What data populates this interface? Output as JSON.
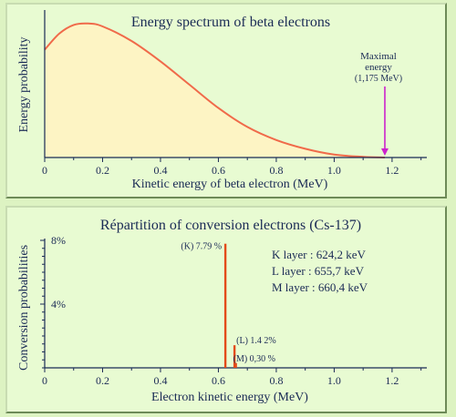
{
  "chart_data": [
    {
      "type": "area",
      "title": "Energy spectrum of beta electrons",
      "xlabel": "Kinetic energy of beta electron (MeV)",
      "ylabel": "Energy probability",
      "xlim": [
        0,
        1.32
      ],
      "ylim": [
        0,
        1.0
      ],
      "xticks": [
        "0",
        "0.2",
        "0.4",
        "0.6",
        "0.8",
        "1.0",
        "1.2"
      ],
      "x": [
        0,
        0.05,
        0.1,
        0.15,
        0.2,
        0.3,
        0.4,
        0.5,
        0.6,
        0.7,
        0.8,
        0.9,
        1.0,
        1.1,
        1.175
      ],
      "y": [
        0.74,
        0.85,
        0.91,
        0.92,
        0.9,
        0.8,
        0.66,
        0.5,
        0.34,
        0.21,
        0.12,
        0.06,
        0.02,
        0.005,
        0
      ],
      "fill_color": "#fdf4c4",
      "line_color": "#f06a4a",
      "annotation": {
        "lines": [
          "Maximal",
          "energy",
          "(1,175 MeV)"
        ],
        "x": 1.175,
        "arrow_color": "#cc22cc"
      }
    },
    {
      "type": "bar",
      "title": "Répartition of conversion electrons (Cs-137)",
      "xlabel": "Electron kinetic energy (MeV)",
      "ylabel": "Conversion probabilities",
      "xlim": [
        0,
        1.32
      ],
      "ylim": [
        0,
        8
      ],
      "xticks": [
        "0",
        "0.2",
        "0.4",
        "0.6",
        "0.8",
        "1.0",
        "1.2"
      ],
      "yticks": [
        "4%",
        "8%"
      ],
      "bar_color": "#e34a1a",
      "bars": [
        {
          "x": 0.6242,
          "value": 7.79,
          "label": "(K) 7.79 %"
        },
        {
          "x": 0.6557,
          "value": 1.42,
          "label": "(L) 1.4 2%"
        },
        {
          "x": 0.6604,
          "value": 0.3,
          "label": "(M) 0,30 %"
        }
      ],
      "layers": [
        "K layer : 624,2 keV",
        "L layer : 655,7 keV",
        "M layer : 660,4 keV"
      ]
    }
  ]
}
